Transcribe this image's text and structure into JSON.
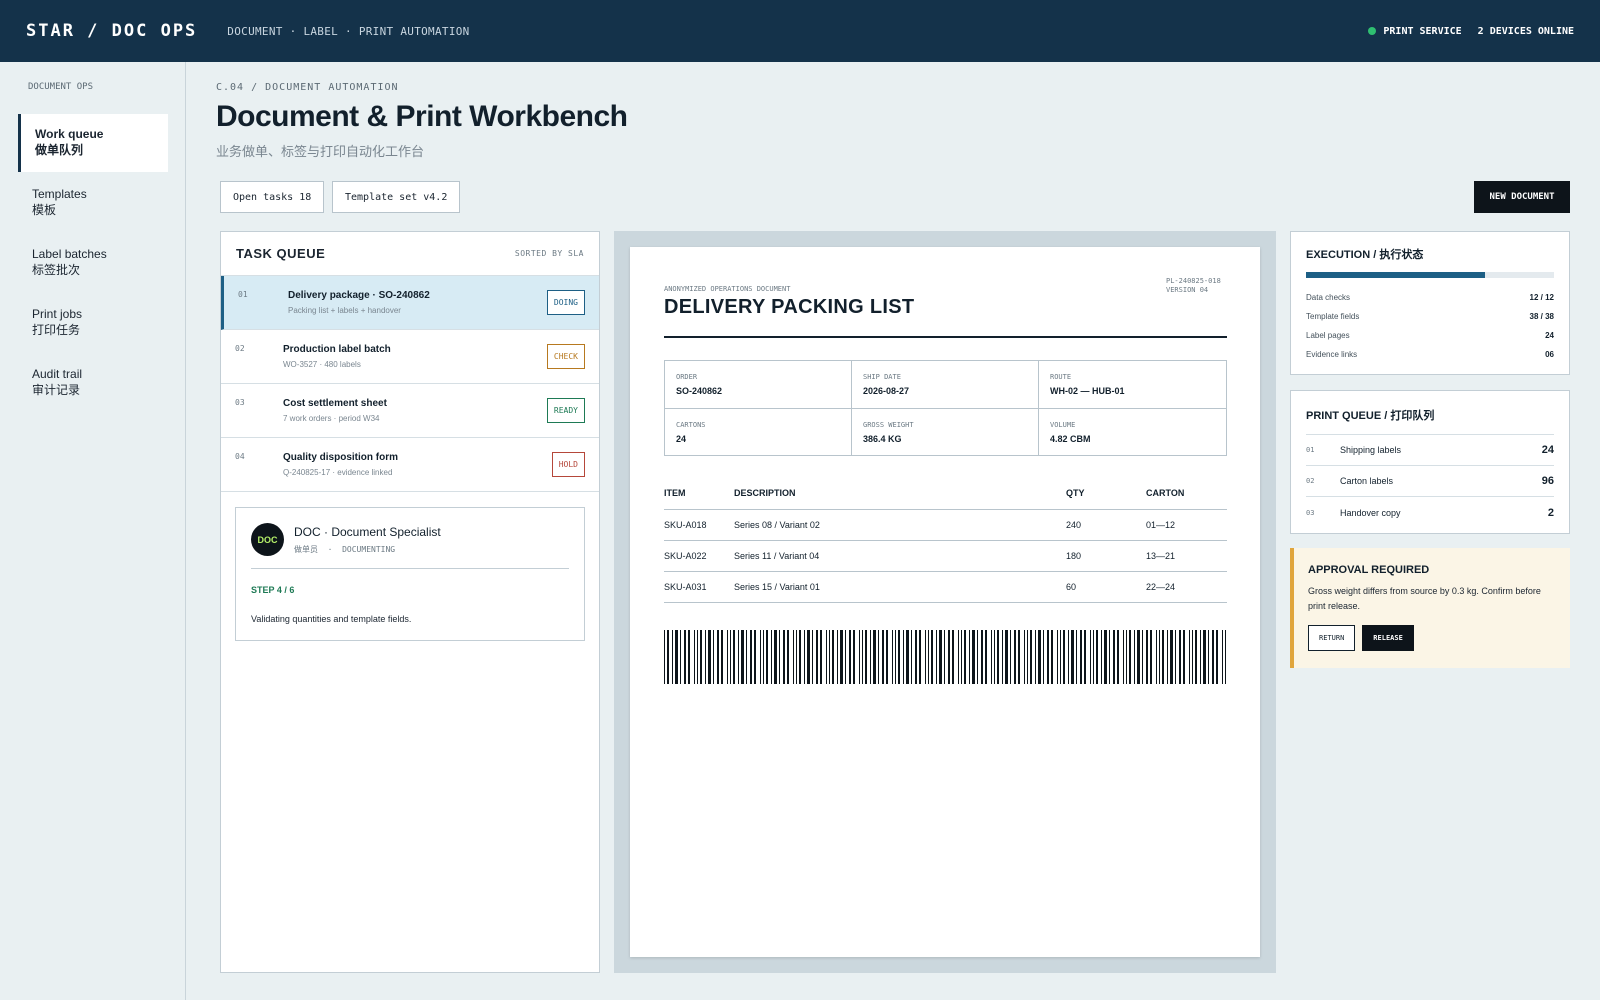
{
  "topbar": {
    "brand": "STAR / DOC OPS",
    "nav": "DOCUMENT · LABEL · PRINT AUTOMATION",
    "service": "PRINT SERVICE",
    "devices": "2 DEVICES ONLINE",
    "status_color": "#2fbf71"
  },
  "sidebar": {
    "heading": "DOCUMENT OPS",
    "items": [
      {
        "label": "Work queue",
        "sub": "做单队列",
        "active": true
      },
      {
        "label": "Templates",
        "sub": "模板"
      },
      {
        "label": "Label batches",
        "sub": "标签批次"
      },
      {
        "label": "Print jobs",
        "sub": "打印任务"
      },
      {
        "label": "Audit trail",
        "sub": "审计记录"
      }
    ]
  },
  "header": {
    "breadcrumb": "C.04 / DOCUMENT AUTOMATION",
    "title": "Document & Print Workbench",
    "subtitle": "业务做单、标签与打印自动化工作台",
    "chips": [
      "Open tasks 18",
      "Template set v4.2"
    ],
    "new_button": "NEW DOCUMENT"
  },
  "queue": {
    "title": "TASK QUEUE",
    "sort": "SORTED BY SLA",
    "tasks": [
      {
        "num": "01",
        "name": "Delivery package · SO-240862",
        "sub": "Packing list + labels + handover",
        "badge": "DOING",
        "badge_color": "#1d5f85"
      },
      {
        "num": "02",
        "name": "Production label batch",
        "sub": "WO-3527 · 480 labels",
        "badge": "CHECK",
        "badge_color": "#b7791f"
      },
      {
        "num": "03",
        "name": "Cost settlement sheet",
        "sub": "7 work orders · period W34",
        "badge": "READY",
        "badge_color": "#1e7a55"
      },
      {
        "num": "04",
        "name": "Quality disposition form",
        "sub": "Q-240825-17 · evidence linked",
        "badge": "HOLD",
        "badge_color": "#b5473a"
      }
    ],
    "agent": {
      "avatar": "DOC",
      "name": "DOC · Document Specialist",
      "role_zh": "做单员",
      "role_sep": "·",
      "role_en": "DOCUMENTING",
      "step": "STEP 4 / 6",
      "message": "Validating quantities and template fields."
    }
  },
  "document": {
    "anon": "ANONYMIZED OPERATIONS DOCUMENT",
    "title": "DELIVERY PACKING LIST",
    "ref": "PL-240825-018",
    "version": "VERSION 04",
    "meta": [
      {
        "key": "ORDER",
        "value": "SO-240862"
      },
      {
        "key": "SHIP DATE",
        "value": "2026-08-27"
      },
      {
        "key": "ROUTE",
        "value": "WH-02 — HUB-01"
      },
      {
        "key": "CARTONS",
        "value": "24"
      },
      {
        "key": "GROSS WEIGHT",
        "value": "386.4 KG"
      },
      {
        "key": "VOLUME",
        "value": "4.82 CBM"
      }
    ],
    "columns": [
      "ITEM",
      "DESCRIPTION",
      "QTY",
      "CARTON"
    ],
    "rows": [
      [
        "SKU-A018",
        "Series 08 / Variant 02",
        "240",
        "01—12"
      ],
      [
        "SKU-A022",
        "Series 11 / Variant 04",
        "180",
        "13—21"
      ],
      [
        "SKU-A031",
        "Series 15 / Variant 01",
        "60",
        "22—24"
      ]
    ]
  },
  "execution": {
    "title": "EXECUTION / 执行状态",
    "progress": 0.72,
    "rows": [
      {
        "label": "Data checks",
        "value": "12 / 12"
      },
      {
        "label": "Template fields",
        "value": "38 / 38"
      },
      {
        "label": "Label pages",
        "value": "24"
      },
      {
        "label": "Evidence links",
        "value": "06"
      }
    ]
  },
  "print_queue": {
    "title": "PRINT QUEUE / 打印队列",
    "jobs": [
      {
        "num": "01",
        "label": "Shipping labels",
        "count": "24"
      },
      {
        "num": "02",
        "label": "Carton labels",
        "count": "96"
      },
      {
        "num": "03",
        "label": "Handover copy",
        "count": "2"
      }
    ]
  },
  "approval": {
    "title": "APPROVAL REQUIRED",
    "text": "Gross weight differs from source by 0.3 kg. Confirm before print release.",
    "return_label": "RETURN",
    "release_label": "RELEASE",
    "accent": "#e0a53c"
  }
}
